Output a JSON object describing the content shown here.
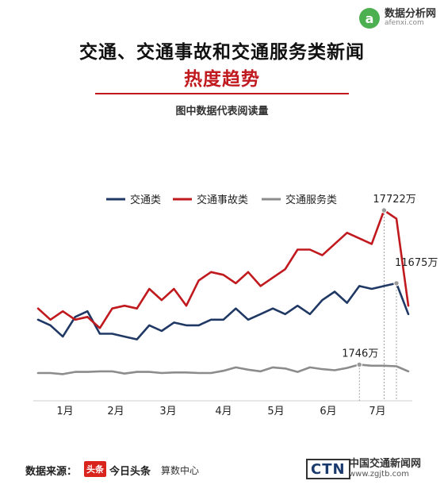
{
  "logo": {
    "mark": "a",
    "name_cn": "数据分析网",
    "name_en": "afenxi.com"
  },
  "header": {
    "title": "交通、交通事故和交通服务类新闻",
    "subtitle": "热度趋势",
    "note": "图中数据代表阅读量"
  },
  "footer": {
    "source_label": "数据来源：",
    "toutiao_badge": "头条",
    "toutiao_name": "今日头条",
    "toutiao_sub": "算数中心",
    "ctn_mark": "CTN",
    "ctn_cn": "中国交通新闻网",
    "ctn_en": "www.zgjtb.com"
  },
  "chart_data": {
    "type": "line",
    "x_labels": [
      "1月",
      "2月",
      "3月",
      "4月",
      "5月",
      "6月",
      "7月"
    ],
    "point_count": 30,
    "legend": [
      "交通类",
      "交通事故类",
      "交通服务类"
    ],
    "series": [
      {
        "name": "交通类",
        "color": "#1f3864",
        "values": [
          7850,
          7750,
          7550,
          7900,
          8000,
          7600,
          7600,
          7550,
          7500,
          7750,
          7650,
          7800,
          7750,
          7750,
          7850,
          7850,
          8050,
          7850,
          7950,
          8050,
          7950,
          8100,
          7950,
          8200,
          8350,
          8150,
          8450,
          8400,
          8450,
          8500
        ]
      },
      {
        "name": "交通事故类",
        "color": "#c0191e",
        "values": [
          8050,
          7850,
          8000,
          7850,
          7900,
          7700,
          8050,
          8100,
          8050,
          8400,
          8200,
          8400,
          8100,
          8550,
          8700,
          8650,
          8500,
          8700,
          8450,
          8600,
          8750,
          9100,
          9100,
          9000,
          9200,
          9400,
          9300,
          9200,
          9800,
          9650
        ]
      },
      {
        "name": "交通服务类",
        "color": "#8c8c8c",
        "values": [
          6900,
          6900,
          6880,
          6920,
          6920,
          6930,
          6930,
          6890,
          6920,
          6920,
          6900,
          6910,
          6910,
          6900,
          6900,
          6940,
          7000,
          6960,
          6930,
          7000,
          6980,
          6920,
          7000,
          6970,
          6950,
          6990,
          7050,
          7030,
          7030,
          7020
        ]
      }
    ],
    "tail": {
      "交通事故类": 8100,
      "交通类": 7950,
      "交通服务类": 6930
    },
    "annotations": [
      {
        "text": "17722万",
        "series": "交通事故类",
        "index": 28
      },
      {
        "text": "11675万",
        "series": "交通类",
        "index": 29
      },
      {
        "text": "1746万",
        "series": "交通服务类",
        "index": 26
      }
    ]
  }
}
